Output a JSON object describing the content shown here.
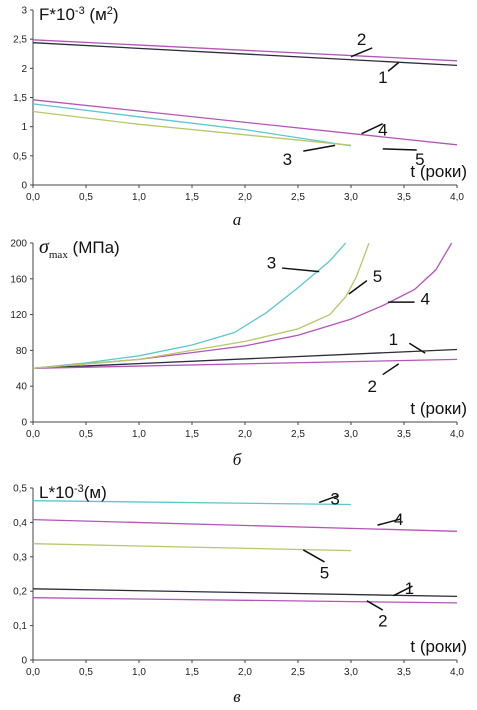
{
  "chart_data": [
    {
      "type": "line",
      "caption": "а",
      "ylabel": "F*10",
      "ylabel_exp": "-3",
      "ylabel_unit": " (м",
      "ylabel_unit_exp": "2",
      "ylabel_close": ")",
      "xlabel": "t (роки)",
      "xlim": [
        0,
        4
      ],
      "ylim": [
        0,
        3
      ],
      "xticks": [
        "0,0",
        "0,5",
        "1,0",
        "1,5",
        "2,0",
        "2,5",
        "3,0",
        "3,5",
        "4,0"
      ],
      "yticks": [
        "0",
        "0,5",
        "1",
        "1,5",
        "2",
        "2,5",
        "3"
      ],
      "series": [
        {
          "name": "1",
          "color": "#2b2b3a",
          "x": [
            0,
            4
          ],
          "y": [
            2.44,
            2.05
          ]
        },
        {
          "name": "2",
          "color": "#b455b8",
          "x": [
            0,
            4
          ],
          "y": [
            2.49,
            2.13
          ]
        },
        {
          "name": "3",
          "color": "#5cc7cf",
          "x": [
            0,
            1,
            2,
            3
          ],
          "y": [
            1.39,
            1.17,
            0.95,
            0.67
          ]
        },
        {
          "name": "4",
          "color": "#b455b8",
          "x": [
            0,
            4
          ],
          "y": [
            1.46,
            0.69
          ]
        },
        {
          "name": "5",
          "color": "#b7c76a",
          "x": [
            0,
            1,
            2,
            3
          ],
          "y": [
            1.26,
            1.04,
            0.86,
            0.68
          ]
        }
      ],
      "labels": [
        {
          "text": "2",
          "x": 3.1,
          "y": 2.5
        },
        {
          "text": "1",
          "x": 3.3,
          "y": 1.85
        },
        {
          "text": "4",
          "x": 3.3,
          "y": 0.95
        },
        {
          "text": "3",
          "x": 2.4,
          "y": 0.45
        },
        {
          "text": "5",
          "x": 3.65,
          "y": 0.45
        }
      ],
      "leaders": [
        {
          "x1": 3.2,
          "y1": 2.35,
          "x2": 3.0,
          "y2": 2.2
        },
        {
          "x1": 3.35,
          "y1": 1.95,
          "x2": 3.45,
          "y2": 2.1
        },
        {
          "x1": 3.3,
          "y1": 1.05,
          "x2": 3.1,
          "y2": 0.88
        },
        {
          "x1": 2.55,
          "y1": 0.58,
          "x2": 2.85,
          "y2": 0.68
        },
        {
          "x1": 3.62,
          "y1": 0.6,
          "x2": 3.3,
          "y2": 0.62
        }
      ]
    },
    {
      "type": "line",
      "caption": "б",
      "ylabel_sigma": "σ",
      "ylabel_sub": "max",
      "ylabel": " (МПа)",
      "xlabel": "t (роки)",
      "xlim": [
        0,
        4
      ],
      "ylim": [
        0,
        200
      ],
      "xticks": [
        "0,0",
        "0,5",
        "1,0",
        "1,5",
        "2,0",
        "2,5",
        "3,0",
        "3,5",
        "4,0"
      ],
      "yticks": [
        "0",
        "40",
        "80",
        "120",
        "160",
        "200"
      ],
      "series": [
        {
          "name": "1",
          "color": "#2b2b3a",
          "x": [
            0,
            4
          ],
          "y": [
            60,
            81
          ]
        },
        {
          "name": "2",
          "color": "#b455b8",
          "x": [
            0,
            4
          ],
          "y": [
            60,
            70
          ]
        },
        {
          "name": "3",
          "color": "#5cc7cf",
          "x": [
            0,
            0.5,
            1,
            1.5,
            1.9,
            2.2,
            2.5,
            2.8,
            2.95
          ],
          "y": [
            60,
            66,
            74,
            86,
            100,
            122,
            150,
            180,
            200
          ]
        },
        {
          "name": "4",
          "color": "#b455b8",
          "x": [
            0,
            1,
            2,
            2.5,
            3,
            3.3,
            3.6,
            3.8,
            3.95
          ],
          "y": [
            60,
            70,
            85,
            97,
            115,
            130,
            148,
            170,
            200
          ]
        },
        {
          "name": "5",
          "color": "#b7c76a",
          "x": [
            0,
            1,
            2,
            2.5,
            2.8,
            2.95,
            3.05,
            3.12,
            3.17
          ],
          "y": [
            60,
            70,
            90,
            104,
            120,
            140,
            162,
            184,
            200
          ]
        }
      ],
      "labels": [
        {
          "text": "3",
          "x": 2.25,
          "y": 178
        },
        {
          "text": "5",
          "x": 3.25,
          "y": 163
        },
        {
          "text": "4",
          "x": 3.7,
          "y": 138
        },
        {
          "text": "1",
          "x": 3.4,
          "y": 93
        },
        {
          "text": "2",
          "x": 3.2,
          "y": 40
        }
      ],
      "leaders": [
        {
          "x1": 2.35,
          "y1": 172,
          "x2": 2.7,
          "y2": 168
        },
        {
          "x1": 3.15,
          "y1": 158,
          "x2": 2.98,
          "y2": 143
        },
        {
          "x1": 3.6,
          "y1": 134,
          "x2": 3.35,
          "y2": 134
        },
        {
          "x1": 3.55,
          "y1": 88,
          "x2": 3.7,
          "y2": 77
        },
        {
          "x1": 3.3,
          "y1": 53,
          "x2": 3.45,
          "y2": 65
        }
      ]
    },
    {
      "type": "line",
      "caption": "в",
      "ylabel": "L*10",
      "ylabel_exp": "-3",
      "ylabel_unit": "(м)",
      "xlabel": "t (роки)",
      "xlim": [
        0,
        4
      ],
      "ylim": [
        0,
        0.5
      ],
      "xticks": [
        "0,0",
        "0,5",
        "1,0",
        "1,5",
        "2,0",
        "2,5",
        "3,0",
        "3,5",
        "4,0"
      ],
      "yticks": [
        "0",
        "0,1",
        "0,2",
        "0,3",
        "0,4",
        "0,5"
      ],
      "series": [
        {
          "name": "1",
          "color": "#2b2b3a",
          "x": [
            0,
            4
          ],
          "y": [
            0.207,
            0.185
          ]
        },
        {
          "name": "2",
          "color": "#b455b8",
          "x": [
            0,
            4
          ],
          "y": [
            0.181,
            0.166
          ]
        },
        {
          "name": "3",
          "color": "#5cc7cf",
          "x": [
            0,
            3
          ],
          "y": [
            0.463,
            0.452
          ]
        },
        {
          "name": "4",
          "color": "#b455b8",
          "x": [
            0,
            4
          ],
          "y": [
            0.408,
            0.374
          ]
        },
        {
          "name": "5",
          "color": "#b7c76a",
          "x": [
            0,
            3
          ],
          "y": [
            0.338,
            0.318
          ]
        }
      ],
      "labels": [
        {
          "text": "3",
          "x": 2.85,
          "y": 0.47
        },
        {
          "text": "4",
          "x": 3.45,
          "y": 0.41
        },
        {
          "text": "5",
          "x": 2.75,
          "y": 0.255
        },
        {
          "text": "1",
          "x": 3.55,
          "y": 0.21
        },
        {
          "text": "2",
          "x": 3.3,
          "y": 0.115
        }
      ],
      "leaders": [
        {
          "x1": 2.88,
          "y1": 0.478,
          "x2": 2.7,
          "y2": 0.458
        },
        {
          "x1": 3.47,
          "y1": 0.41,
          "x2": 3.25,
          "y2": 0.392
        },
        {
          "x1": 2.75,
          "y1": 0.285,
          "x2": 2.55,
          "y2": 0.32
        },
        {
          "x1": 3.58,
          "y1": 0.215,
          "x2": 3.4,
          "y2": 0.187
        },
        {
          "x1": 3.3,
          "y1": 0.145,
          "x2": 3.15,
          "y2": 0.172
        }
      ]
    }
  ]
}
